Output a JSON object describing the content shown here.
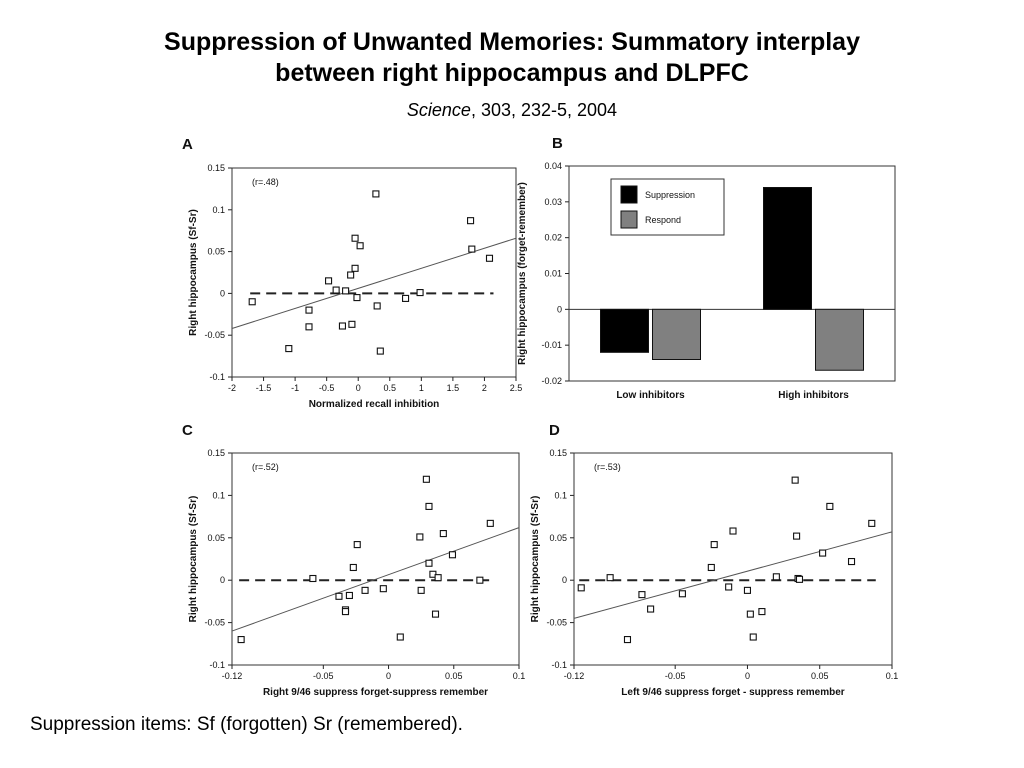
{
  "slide": {
    "title_line1": "Suppression of Unwanted Memories: Summatory interplay",
    "title_line2": "between right hippocampus and DLPFC",
    "citation_journal": "Science",
    "citation_rest": ", 303, 232-5, 2004",
    "footer": "Suppression items: Sf (forgotten) Sr (remembered)."
  },
  "chart_data": [
    {
      "panel": "A",
      "type": "scatter",
      "annotation": "(r=.48)",
      "xlabel": "Normalized recall inhibition",
      "ylabel": "Right hippocampus (Sf-Sr)",
      "xlim": [
        -2,
        2.5
      ],
      "ylim": [
        -0.1,
        0.15
      ],
      "xticks": [
        "-2",
        "-1.5",
        "-1",
        "-0.5",
        "0",
        "0.5",
        "1",
        "1.5",
        "2",
        "2.5"
      ],
      "yticks": [
        "-0.1",
        "-0.05",
        "0",
        "0.05",
        "0.1",
        "0.15"
      ],
      "x": [
        -1.68,
        -1.1,
        -0.78,
        -0.78,
        -0.47,
        -0.35,
        -0.25,
        -0.2,
        -0.12,
        -0.1,
        -0.05,
        -0.05,
        -0.02,
        0.03,
        0.28,
        0.3,
        0.35,
        0.75,
        0.98,
        1.78,
        1.8,
        2.08
      ],
      "y": [
        -0.01,
        -0.066,
        -0.02,
        -0.04,
        0.015,
        0.004,
        -0.039,
        0.003,
        0.022,
        -0.037,
        0.066,
        0.03,
        -0.005,
        0.057,
        0.119,
        -0.015,
        -0.069,
        -0.006,
        0.001,
        0.087,
        0.053,
        0.042
      ],
      "reference_line": {
        "y": 0,
        "style": "dashed"
      },
      "fit_line": {
        "x": [
          -2,
          2.5
        ],
        "y": [
          -0.042,
          0.066
        ]
      },
      "grid": false
    },
    {
      "panel": "B",
      "type": "bar",
      "ylabel": "Right hippocampus (forget-remember)",
      "categories": [
        "Low inhibitors",
        "High inhibitors"
      ],
      "series": [
        {
          "name": "Suppression",
          "values": [
            -0.012,
            0.034
          ],
          "color": "#000000"
        },
        {
          "name": "Respond",
          "values": [
            -0.014,
            -0.017
          ],
          "color": "#808080"
        }
      ],
      "ylim": [
        -0.02,
        0.04
      ],
      "yticks": [
        "-0.02",
        "-0.01",
        "0",
        "0.01",
        "0.02",
        "0.03",
        "0.04"
      ],
      "legend": "top-left",
      "grid": false
    },
    {
      "panel": "C",
      "type": "scatter",
      "annotation": "(r=.52)",
      "xlabel": "Right 9/46 suppress forget-suppress remember",
      "ylabel": "Right hippocampus (Sf-Sr)",
      "xlim": [
        -0.12,
        0.1
      ],
      "ylim": [
        -0.1,
        0.15
      ],
      "xticks": [
        "-0.12",
        "-0.05",
        "0",
        "0.05",
        "0.1"
      ],
      "yticks": [
        "-0.1",
        "-0.05",
        "0",
        "0.05",
        "0.1",
        "0.15"
      ],
      "x": [
        -0.113,
        -0.058,
        -0.038,
        -0.033,
        -0.033,
        -0.03,
        -0.027,
        -0.024,
        -0.018,
        -0.004,
        0.009,
        0.024,
        0.025,
        0.029,
        0.031,
        0.031,
        0.034,
        0.036,
        0.038,
        0.042,
        0.049,
        0.07,
        0.078
      ],
      "y": [
        -0.07,
        0.002,
        -0.019,
        -0.035,
        -0.037,
        -0.018,
        0.015,
        0.042,
        -0.012,
        -0.01,
        -0.067,
        0.051,
        -0.012,
        0.119,
        0.087,
        0.02,
        0.007,
        -0.04,
        0.003,
        0.055,
        0.03,
        0.0,
        0.067
      ],
      "reference_line": {
        "y": 0,
        "style": "dashed"
      },
      "fit_line": {
        "x": [
          -0.12,
          0.1
        ],
        "y": [
          -0.06,
          0.062
        ]
      },
      "grid": false
    },
    {
      "panel": "D",
      "type": "scatter",
      "annotation": "(r=.53)",
      "xlabel": "Left 9/46 suppress forget - suppress remember",
      "ylabel": "Right hippocampus (Sf-Sr)",
      "xlim": [
        -0.12,
        0.1
      ],
      "ylim": [
        -0.1,
        0.15
      ],
      "xticks": [
        "-0.12",
        "-0.05",
        "0",
        "0.05",
        "0.1"
      ],
      "yticks": [
        "-0.1",
        "-0.05",
        "0",
        "0.05",
        "0.1",
        "0.15"
      ],
      "x": [
        -0.115,
        -0.095,
        -0.083,
        -0.073,
        -0.067,
        -0.045,
        -0.025,
        -0.023,
        -0.013,
        -0.01,
        0.0,
        0.002,
        0.004,
        0.01,
        0.02,
        0.033,
        0.034,
        0.035,
        0.036,
        0.052,
        0.057,
        0.072,
        0.086
      ],
      "y": [
        -0.009,
        0.003,
        -0.07,
        -0.017,
        -0.034,
        -0.016,
        0.015,
        0.042,
        -0.008,
        0.058,
        -0.012,
        -0.04,
        -0.067,
        -0.037,
        0.004,
        0.118,
        0.052,
        0.002,
        0.001,
        0.032,
        0.087,
        0.022,
        0.067
      ],
      "reference_line": {
        "y": 0,
        "style": "dashed"
      },
      "fit_line": {
        "x": [
          -0.12,
          0.1
        ],
        "y": [
          -0.045,
          0.057
        ]
      },
      "grid": false
    }
  ]
}
